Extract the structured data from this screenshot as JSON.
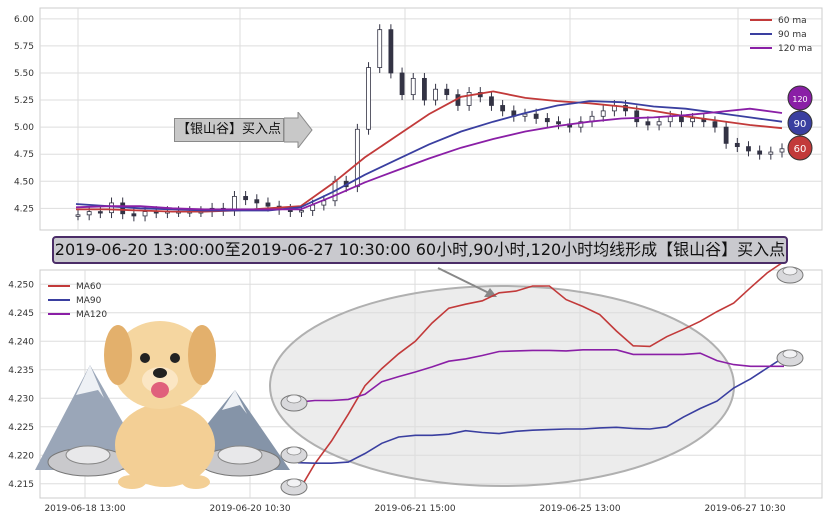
{
  "banner_text": "2019-06-20 13:00:00至2019-06-27 10:30:00 60小时,90小时,120小时均线形成【银山谷】买入点",
  "signal_label": "【银山谷】买入点",
  "colors": {
    "ma60": "#c23a3a",
    "ma90": "#3a3fa0",
    "ma120": "#8a1fa6",
    "candle": "#333344",
    "grid": "#dddddd"
  },
  "badges": [
    {
      "label": "120",
      "color": "#8a1fa6"
    },
    {
      "label": "90",
      "color": "#3a3fa0"
    },
    {
      "label": "60",
      "color": "#c23a3a"
    }
  ],
  "icons": {
    "mascot": "dog-mascot-icon",
    "ingot": "silver-ingot-icon",
    "mountain": "mountain-icon"
  },
  "chart_data": [
    {
      "type": "line",
      "subtype": "candlestick-with-moving-averages",
      "yticks": [
        "6.00",
        "5.75",
        "5.50",
        "5.25",
        "5.00",
        "4.75",
        "4.50",
        "4.25"
      ],
      "ylim": [
        4.05,
        6.1
      ],
      "grid": true,
      "legend_position": "top-right",
      "legend": [
        "60 ma",
        "90 ma",
        "120 ma"
      ],
      "x": [
        0,
        10,
        20,
        30,
        40,
        50,
        60,
        70,
        80,
        90,
        100,
        110,
        120,
        130,
        140,
        150,
        160,
        170,
        180,
        190,
        200,
        210,
        220
      ],
      "series": [
        {
          "name": "60 ma",
          "values": [
            4.24,
            4.24,
            4.23,
            4.22,
            4.22,
            4.23,
            4.25,
            4.27,
            4.48,
            4.72,
            4.92,
            5.12,
            5.28,
            5.33,
            5.27,
            5.24,
            5.22,
            5.19,
            5.15,
            5.1,
            5.06,
            5.02,
            4.99
          ]
        },
        {
          "name": "90 ma",
          "values": [
            4.29,
            4.27,
            4.25,
            4.24,
            4.23,
            4.23,
            4.23,
            4.26,
            4.4,
            4.56,
            4.7,
            4.84,
            4.96,
            5.05,
            5.13,
            5.2,
            5.24,
            5.23,
            5.19,
            5.17,
            5.13,
            5.09,
            5.05
          ]
        },
        {
          "name": "120 ma",
          "values": [
            4.26,
            4.27,
            4.27,
            4.25,
            4.24,
            4.24,
            4.24,
            4.24,
            4.36,
            4.49,
            4.6,
            4.71,
            4.81,
            4.89,
            4.96,
            5.01,
            5.05,
            5.08,
            5.09,
            5.11,
            5.14,
            5.17,
            5.13
          ]
        }
      ],
      "candles_close": [
        4.19,
        4.22,
        4.21,
        4.3,
        4.2,
        4.18,
        4.22,
        4.21,
        4.22,
        4.22,
        4.22,
        4.22,
        4.25,
        4.23,
        4.36,
        4.33,
        4.3,
        4.27,
        4.24,
        4.22,
        4.23,
        4.28,
        4.32,
        4.5,
        4.45,
        4.98,
        5.55,
        5.9,
        5.5,
        5.3,
        5.45,
        5.25,
        5.35,
        5.3,
        5.2,
        5.32,
        5.28,
        5.2,
        5.15,
        5.1,
        5.12,
        5.08,
        5.05,
        5.03,
        5.0,
        5.05,
        5.1,
        5.15,
        5.2,
        5.15,
        5.05,
        5.02,
        5.05,
        5.1,
        5.05,
        5.08,
        5.05,
        5.0,
        4.85,
        4.82,
        4.78,
        4.75,
        4.77,
        4.8
      ]
    },
    {
      "type": "line",
      "yticks": [
        "4.250",
        "4.245",
        "4.240",
        "4.235",
        "4.230",
        "4.225",
        "4.220",
        "4.215"
      ],
      "ylim": [
        4.2125,
        4.2525
      ],
      "xticks": [
        "2019-06-18 13:00",
        "2019-06-20 10:30",
        "2019-06-21 15:00",
        "2019-06-25 13:00",
        "2019-06-27 10:30"
      ],
      "grid": true,
      "legend_position": "top-left",
      "legend": [
        "MA60",
        "MA90",
        "MA120"
      ],
      "x": [
        0,
        1,
        2,
        3,
        4,
        5,
        6,
        7,
        8,
        9,
        10,
        11,
        12,
        13,
        14,
        15,
        16,
        17,
        18,
        19,
        20,
        21,
        22,
        23,
        24,
        25,
        26,
        27,
        28,
        29
      ],
      "series": [
        {
          "name": "MA60",
          "values": [
            4.2135,
            4.2185,
            4.2225,
            4.2272,
            4.2322,
            4.2352,
            4.2378,
            4.24,
            4.2432,
            4.2458,
            4.2465,
            4.2471,
            4.2485,
            4.2488,
            4.2497,
            4.2497,
            4.2473,
            4.2461,
            4.2447,
            4.2418,
            4.2392,
            4.2391,
            4.2408,
            4.2421,
            4.2435,
            4.2452,
            4.2467,
            4.2494,
            4.252,
            4.254
          ]
        },
        {
          "name": "MA90",
          "values": [
            4.2187,
            4.2186,
            4.2186,
            4.2188,
            4.2203,
            4.2221,
            4.2232,
            4.2235,
            4.2235,
            4.2237,
            4.2243,
            4.224,
            4.2238,
            4.2242,
            4.2244,
            4.2245,
            4.2246,
            4.2246,
            4.2248,
            4.2249,
            4.2247,
            4.2246,
            4.225,
            4.2267,
            4.2282,
            4.2295,
            4.2318,
            4.2334,
            4.2353,
            4.2372
          ]
        },
        {
          "name": "MA120",
          "values": [
            4.2293,
            4.2296,
            4.2296,
            4.2298,
            4.2307,
            4.2329,
            4.2338,
            4.2346,
            4.2355,
            4.2365,
            4.2369,
            4.2375,
            4.2382,
            4.2383,
            4.2384,
            4.2384,
            4.2383,
            4.2385,
            4.2385,
            4.2385,
            4.2377,
            4.2377,
            4.2377,
            4.2377,
            4.2379,
            4.2366,
            4.2359,
            4.2356,
            4.2356,
            4.2356
          ]
        }
      ]
    }
  ]
}
